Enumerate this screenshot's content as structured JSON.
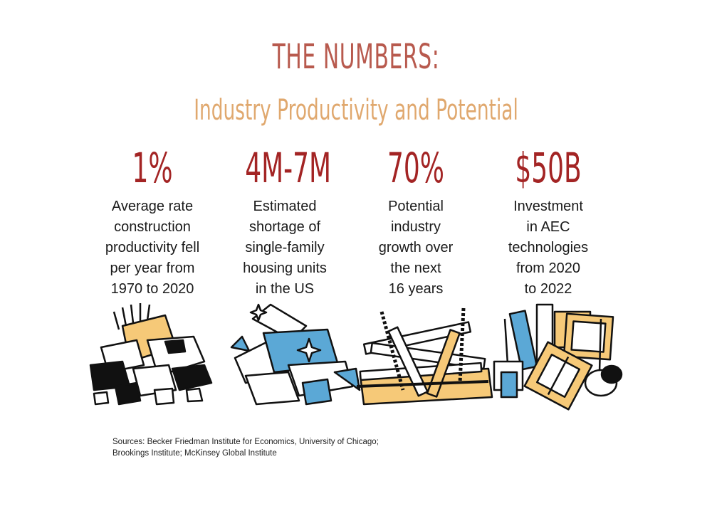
{
  "header": {
    "title": "THE NUMBERS:",
    "subtitle": "Industry Productivity and Potential"
  },
  "stats": [
    {
      "value": "1",
      "suffix": "%",
      "lines": [
        "Average rate",
        "construction",
        "productivity fell",
        "per year from",
        "1970 to 2020"
      ]
    },
    {
      "value": "4M-7M",
      "suffix": "",
      "lines": [
        "Estimated",
        "shortage of",
        "single-family",
        "housing units",
        "in the US"
      ]
    },
    {
      "value": "70",
      "suffix": "%",
      "lines": [
        "Potential",
        "industry",
        "growth over",
        "the next",
        "16 years"
      ]
    },
    {
      "value": "$50",
      "suffix": "B",
      "lines": [
        "Investment",
        "in AEC",
        "technologies",
        "from 2020",
        "to 2022"
      ]
    }
  ],
  "colors": {
    "title": "#b85a4e",
    "subtitle": "#e0a86e",
    "stat_value": "#a32424",
    "accent_yellow": "#f6c978",
    "accent_blue": "#5ba8d6"
  },
  "illustrations": [
    "rubble-pile-icon",
    "shattered-glass-icon",
    "steel-beams-pile-icon",
    "building-materials-icon"
  ],
  "footer": {
    "sources_line1": "Sources: Becker Friedman Institute for Economics, University of Chicago;",
    "sources_line2": "Brookings Institute; McKinsey Global Institute"
  }
}
